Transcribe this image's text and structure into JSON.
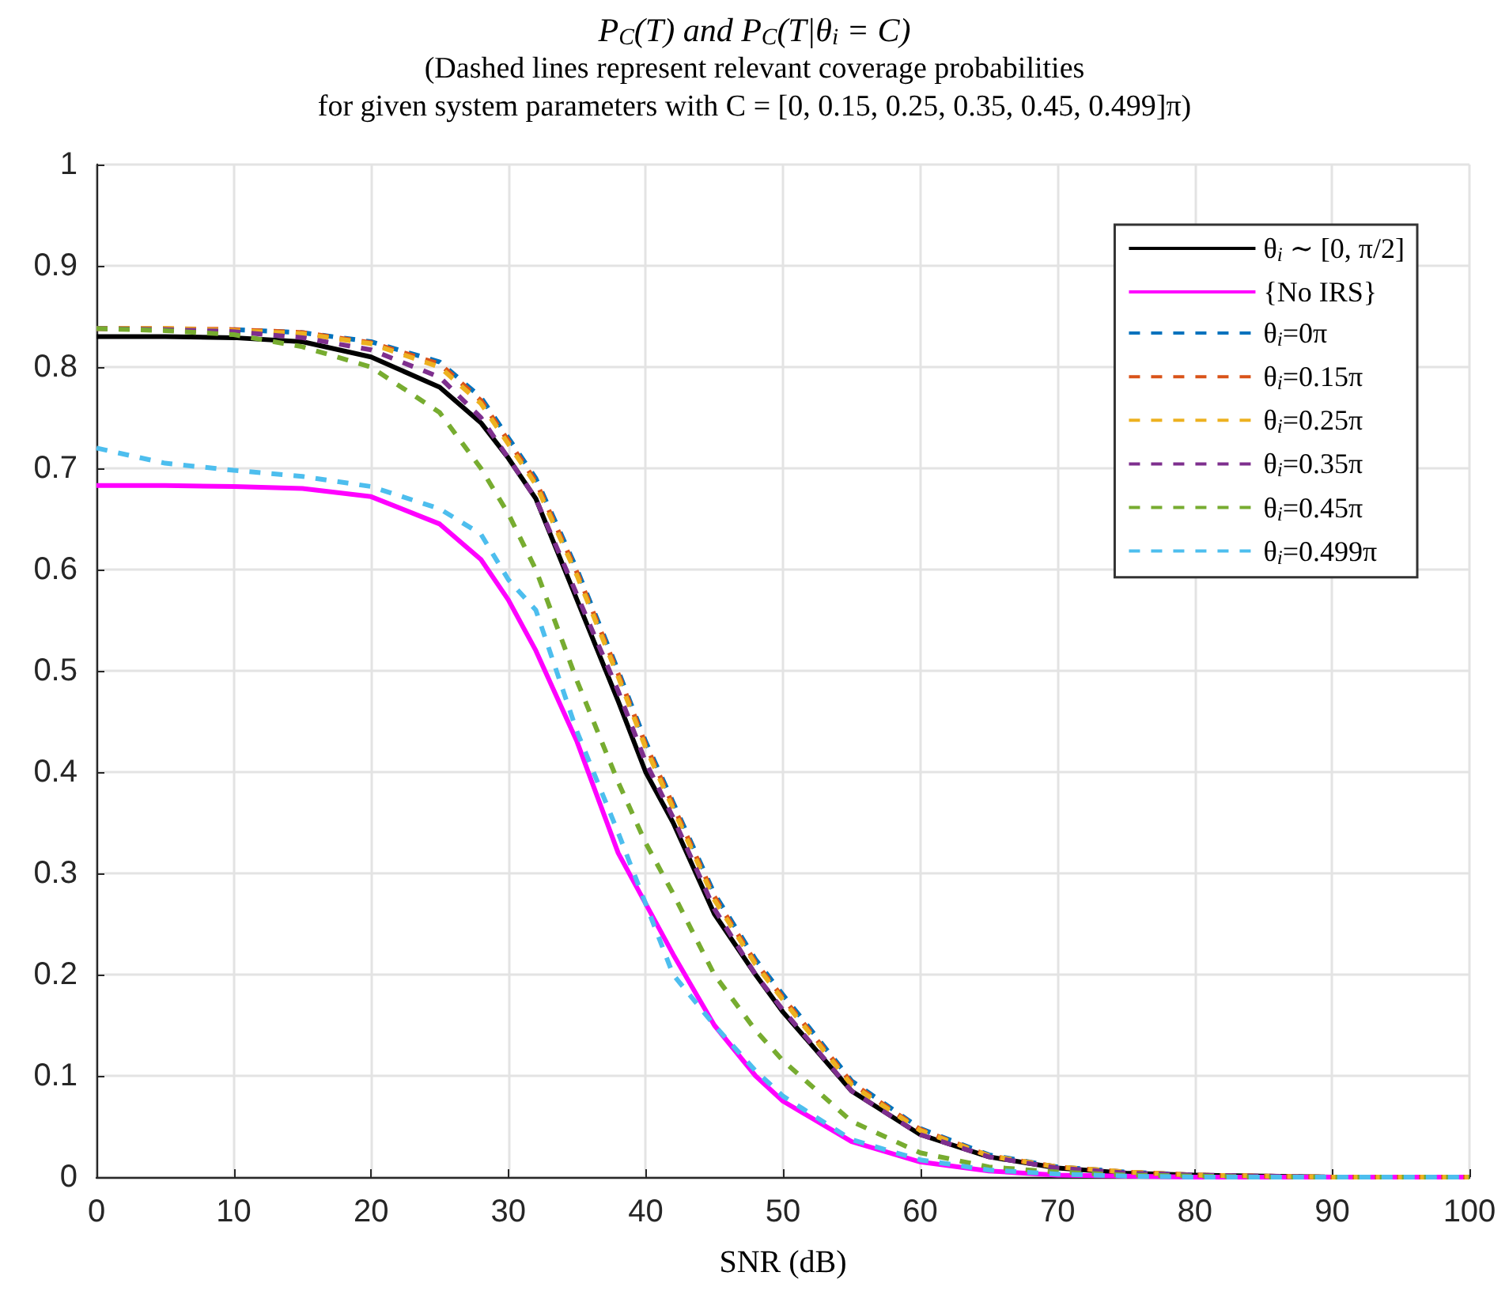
{
  "chart_data": {
    "type": "line",
    "title": "P$_{C}$(T) and P$_{C}$(T|θ$_{i}$ = C)",
    "subtitle": "(Dashed lines represent relevant coverage probabilities\nfor given system parameters with C = [0, 0.15, 0.25, 0.35, 0.45, 0.499]π)",
    "xlabel": "SNR (dB)",
    "x": [
      0,
      5,
      10,
      15,
      20,
      25,
      28,
      30,
      32,
      35,
      38,
      40,
      42,
      45,
      48,
      50,
      55,
      60,
      65,
      70,
      75,
      80,
      85,
      90,
      95,
      100
    ],
    "series": [
      {
        "name": "θ$_{i}$ ∼ [0, π/2]",
        "color": "#000000",
        "line_style": "solid",
        "values": [
          0.83,
          0.83,
          0.829,
          0.825,
          0.81,
          0.78,
          0.745,
          0.71,
          0.67,
          0.57,
          0.47,
          0.4,
          0.35,
          0.26,
          0.2,
          0.163,
          0.085,
          0.042,
          0.02,
          0.009,
          0.004,
          0.002,
          0.001,
          0,
          0,
          0
        ]
      },
      {
        "name": "{No IRS}",
        "color": "#ff00ff",
        "line_style": "solid",
        "values": [
          0.683,
          0.683,
          0.682,
          0.68,
          0.672,
          0.645,
          0.61,
          0.57,
          0.52,
          0.43,
          0.32,
          0.27,
          0.22,
          0.15,
          0.1,
          0.075,
          0.035,
          0.015,
          0.006,
          0.002,
          0.001,
          0,
          0,
          0,
          0,
          0
        ]
      },
      {
        "name": "θ$_{i}$=0π",
        "color": "#0072bd",
        "line_style": "dashed",
        "values": [
          null,
          null,
          0.837,
          0.834,
          0.825,
          0.805,
          0.77,
          0.73,
          0.69,
          0.6,
          0.5,
          0.43,
          0.37,
          0.28,
          0.215,
          0.18,
          0.095,
          0.048,
          0.022,
          0.01,
          0.005,
          0.002,
          null,
          null,
          null,
          null
        ]
      },
      {
        "name": "θ$_{i}$=0.15π",
        "color": "#d95319",
        "line_style": "dashed",
        "values": [
          0.838,
          0.838,
          0.837,
          0.834,
          0.824,
          0.803,
          0.767,
          0.727,
          0.687,
          0.597,
          0.497,
          0.427,
          0.367,
          0.277,
          0.212,
          0.177,
          0.093,
          0.047,
          0.021,
          0.01,
          0.005,
          0.002,
          0.001,
          0,
          0,
          0
        ]
      },
      {
        "name": "θ$_{i}$=0.25π",
        "color": "#edb120",
        "line_style": "dashed",
        "values": [
          0.838,
          0.838,
          0.836,
          0.833,
          0.823,
          0.8,
          0.764,
          0.724,
          0.684,
          0.594,
          0.494,
          0.424,
          0.364,
          0.274,
          0.21,
          0.175,
          0.091,
          0.046,
          0.021,
          0.01,
          0.005,
          0.002,
          0.001,
          0,
          0,
          0
        ]
      },
      {
        "name": "θ$_{i}$=0.35π",
        "color": "#7e2f8e",
        "line_style": "dashed",
        "values": [
          0.838,
          0.837,
          0.835,
          0.829,
          0.817,
          0.79,
          0.75,
          0.71,
          0.67,
          0.575,
          0.48,
          0.41,
          0.355,
          0.265,
          0.2,
          0.165,
          0.085,
          0.042,
          0.02,
          0.009,
          0.004,
          0.002,
          0.001,
          0,
          0,
          0
        ]
      },
      {
        "name": "θ$_{i}$=0.45π",
        "color": "#77ac30",
        "line_style": "dashed",
        "values": [
          0.838,
          0.836,
          0.832,
          0.82,
          0.8,
          0.755,
          0.7,
          0.655,
          0.6,
          0.49,
          0.39,
          0.33,
          0.28,
          0.2,
          0.145,
          0.115,
          0.055,
          0.024,
          0.01,
          0.005,
          0.002,
          0.001,
          0,
          0,
          0,
          0
        ]
      },
      {
        "name": "θ$_{i}$=0.499π",
        "color": "#4dbeee",
        "line_style": "dashed",
        "values": [
          0.72,
          0.705,
          0.698,
          0.692,
          0.682,
          0.66,
          0.635,
          0.59,
          0.56,
          0.44,
          0.34,
          0.27,
          0.2,
          0.15,
          0.105,
          0.08,
          0.037,
          0.017,
          0.007,
          0.003,
          0.001,
          0,
          0,
          0,
          0,
          0
        ]
      }
    ],
    "xlim": [
      0,
      100
    ],
    "xticks": [
      0,
      10,
      20,
      30,
      40,
      50,
      60,
      70,
      80,
      90,
      100
    ],
    "ylim": [
      0,
      1
    ],
    "yticks": [
      0,
      0.1,
      0.2,
      0.3,
      0.4,
      0.5,
      0.6,
      0.7,
      0.8,
      0.9,
      1
    ],
    "grid": true,
    "legend": "top right",
    "marker": "none"
  }
}
